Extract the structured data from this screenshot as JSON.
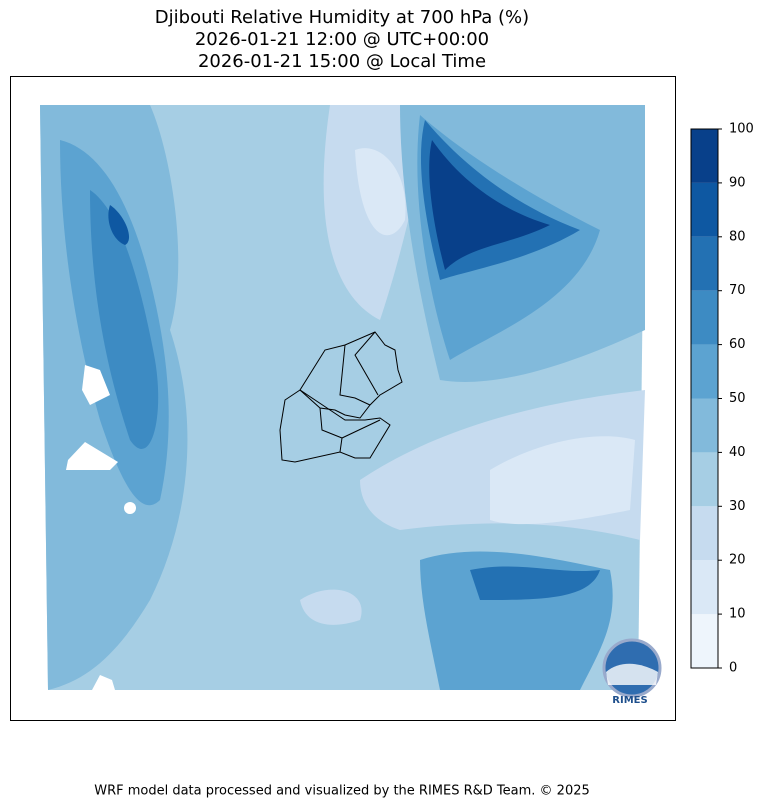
{
  "title": [
    "Djibouti Relative Humidity at 700 hPa (%)",
    "2026-01-21 12:00 @ UTC+00:00",
    "2026-01-21 15:00 @ Local Time"
  ],
  "colorbar": {
    "ticks": [
      0,
      10,
      20,
      30,
      40,
      50,
      60,
      70,
      80,
      90,
      100
    ],
    "colors": [
      "#eef5fc",
      "#dae8f6",
      "#c6dbef",
      "#a6cee4",
      "#82badb",
      "#5ca3d1",
      "#3d8bc3",
      "#2371b3",
      "#0e58a2",
      "#08408a"
    ]
  },
  "logo": "RIMES",
  "footer": "WRF model data processed and visualized by the RIMES R&D Team. © 2025"
}
